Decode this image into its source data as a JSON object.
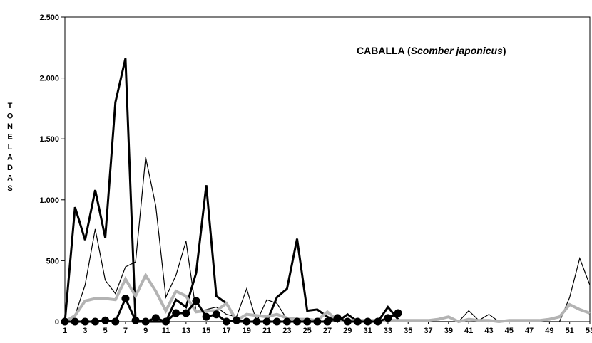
{
  "chart_data": {
    "type": "line",
    "title_main": "CABALLA (",
    "title_italic": "Scomber japonicus",
    "title_close": ")",
    "ylabel": "TONELADAS",
    "ylim": [
      0,
      2500
    ],
    "yticks": [
      0,
      500,
      1000,
      1500,
      2000,
      2500
    ],
    "ytick_labels": [
      "0",
      "500",
      "1.000",
      "1.500",
      "2.000",
      "2.500"
    ],
    "xlim": [
      1,
      53
    ],
    "xticks": [
      1,
      3,
      5,
      7,
      9,
      11,
      13,
      15,
      17,
      19,
      21,
      23,
      25,
      27,
      29,
      31,
      33,
      35,
      37,
      39,
      41,
      43,
      45,
      47,
      49,
      51,
      53
    ],
    "grid": false,
    "series": [
      {
        "color": "#000000",
        "style": "thick",
        "x": [
          1,
          2,
          3,
          4,
          5,
          6,
          7,
          8,
          9,
          10,
          11,
          12,
          13,
          14,
          15,
          16,
          17,
          18,
          19,
          20,
          21,
          22,
          23,
          24,
          25,
          26,
          27,
          28,
          29,
          30,
          31,
          32,
          33,
          34
        ],
        "values": [
          0,
          940,
          670,
          1080,
          690,
          1800,
          2160,
          0,
          0,
          0,
          0,
          180,
          120,
          400,
          1120,
          210,
          150,
          0,
          0,
          0,
          0,
          200,
          270,
          680,
          90,
          100,
          40,
          0,
          60,
          0,
          0,
          0,
          120,
          20
        ]
      },
      {
        "color": "#000000",
        "style": "thin",
        "x": [
          1,
          2,
          3,
          4,
          5,
          6,
          7,
          8,
          9,
          10,
          11,
          12,
          13,
          14,
          15,
          16,
          17,
          18,
          19,
          20,
          21,
          22,
          23,
          24,
          25,
          26,
          27,
          28,
          29,
          30,
          31,
          32,
          33,
          34,
          35,
          36,
          37,
          38,
          39,
          40,
          41,
          42,
          43,
          44,
          45,
          46,
          47,
          48,
          49,
          50,
          51,
          52,
          53
        ],
        "values": [
          0,
          50,
          300,
          760,
          340,
          230,
          450,
          490,
          1350,
          950,
          200,
          380,
          660,
          80,
          100,
          120,
          60,
          40,
          270,
          0,
          180,
          150,
          20,
          30,
          10,
          0,
          0,
          0,
          0,
          0,
          0,
          0,
          0,
          0,
          0,
          0,
          0,
          0,
          0,
          0,
          90,
          10,
          60,
          0,
          0,
          0,
          0,
          0,
          0,
          0,
          200,
          520,
          300
        ]
      },
      {
        "color": "#b3b3b3",
        "style": "gray",
        "x": [
          1,
          2,
          3,
          4,
          5,
          6,
          7,
          8,
          9,
          10,
          11,
          12,
          13,
          14,
          15,
          16,
          17,
          18,
          19,
          20,
          21,
          22,
          23,
          24,
          25,
          26,
          27,
          28,
          29,
          30,
          31,
          32,
          33,
          34,
          35,
          36,
          37,
          38,
          39,
          40,
          41,
          42,
          43,
          44,
          45,
          46,
          47,
          48,
          49,
          50,
          51,
          52,
          53
        ],
        "values": [
          0,
          50,
          170,
          190,
          190,
          180,
          350,
          210,
          380,
          250,
          90,
          250,
          210,
          80,
          90,
          90,
          150,
          10,
          60,
          50,
          40,
          60,
          30,
          20,
          20,
          10,
          80,
          10,
          10,
          10,
          10,
          10,
          10,
          10,
          10,
          10,
          10,
          20,
          40,
          0,
          20,
          10,
          10,
          0,
          10,
          10,
          10,
          10,
          20,
          40,
          140,
          100,
          70
        ]
      },
      {
        "color": "#000000",
        "style": "marker",
        "x": [
          1,
          2,
          3,
          4,
          5,
          6,
          7,
          8,
          9,
          10,
          11,
          12,
          13,
          14,
          15,
          16,
          17,
          18,
          19,
          20,
          21,
          22,
          23,
          24,
          25,
          26,
          27,
          28,
          29,
          30,
          31,
          32,
          33,
          34
        ],
        "values": [
          0,
          0,
          0,
          0,
          10,
          0,
          190,
          10,
          0,
          30,
          0,
          70,
          70,
          170,
          40,
          60,
          0,
          10,
          0,
          0,
          0,
          0,
          0,
          0,
          0,
          0,
          0,
          30,
          0,
          0,
          0,
          0,
          30,
          70
        ]
      }
    ]
  }
}
